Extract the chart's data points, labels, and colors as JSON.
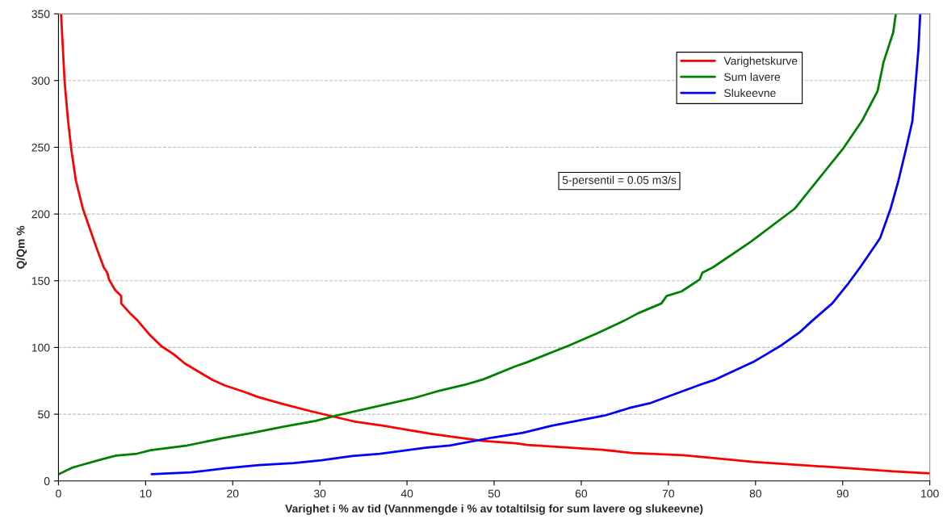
{
  "chart_data": {
    "type": "line",
    "xlabel": "Varighet i % av tid (Vannmengde i % av totaltilsig for sum lavere og slukeevne)",
    "ylabel": "Q/Qm %",
    "xlim": [
      0,
      100
    ],
    "ylim": [
      0,
      350
    ],
    "xticks": [
      0,
      10,
      20,
      30,
      40,
      50,
      60,
      70,
      80,
      90,
      100
    ],
    "yticks": [
      0,
      50,
      100,
      150,
      200,
      250,
      300,
      350
    ],
    "grid": "y",
    "legend": "top right",
    "marker": "none",
    "line_style": "solid",
    "annotations": [
      "5-persentil = 0.05 m3/s"
    ],
    "series": [
      {
        "name": "Varighetskurve",
        "color": "#ff0000",
        "x": [
          0.3,
          0.4,
          0.7,
          0.8,
          1.1,
          1.5,
          2.0,
          2.8,
          4.4,
          5.2,
          5.6,
          5.8,
          6.5,
          7.2,
          7.2,
          8.3,
          9.1,
          10.4,
          11.8,
          13.2,
          14.5,
          17.7,
          19.1,
          21.2,
          23,
          25.9,
          29.1,
          33.9,
          37.3,
          42.6,
          45.1,
          48.7,
          52.5,
          53.8,
          62.4,
          65.8,
          71.7,
          75.4,
          79.7,
          89.6,
          95.8,
          100
        ],
        "values": [
          350,
          337,
          300,
          292,
          270,
          247,
          225,
          204,
          174,
          160,
          156,
          151,
          143,
          138.5,
          133,
          125,
          120,
          110,
          101,
          95,
          88,
          75.6,
          71.5,
          67,
          62.7,
          57.4,
          52,
          44.6,
          41.3,
          35.5,
          33.2,
          30,
          28.2,
          27,
          23.4,
          21,
          19.3,
          17,
          14.3,
          10,
          7.2,
          5.6
        ]
      },
      {
        "name": "Sum lavere",
        "color": "#008000",
        "x": [
          0,
          1.5,
          2.4,
          5,
          6.6,
          9,
          10.6,
          14.8,
          18.8,
          22.3,
          25.9,
          29.5,
          32.3,
          40.9,
          43.4,
          46.6,
          48.7,
          52.5,
          53.8,
          58.7,
          61.8,
          64.9,
          66.5,
          69.2,
          69.8,
          71.5,
          73.6,
          73.9,
          75.1,
          79.4,
          84.5,
          90.1,
          92.2,
          94,
          94.7,
          95.8,
          96.1
        ],
        "values": [
          5,
          9.7,
          11.5,
          16.3,
          19,
          20.4,
          23,
          26.6,
          32,
          36,
          40.8,
          45,
          49.6,
          62.3,
          67,
          72,
          76,
          86,
          89,
          101.8,
          110.5,
          120,
          125.6,
          133,
          138.6,
          142,
          151,
          156,
          160,
          179,
          204,
          249.5,
          269.6,
          292,
          314,
          336,
          350
        ]
      },
      {
        "name": "Slukeevne",
        "color": "#0000ff",
        "x": [
          10.7,
          15.2,
          19.1,
          23,
          27,
          30.2,
          33.7,
          36.9,
          42.3,
          44.9,
          49.8,
          53.3,
          56.6,
          62.7,
          65.5,
          68,
          73.6,
          75.4,
          79.7,
          81,
          83,
          85,
          86.5,
          88.8,
          90.5,
          92,
          94,
          94.3,
          95.5,
          96.4,
          97.3,
          98,
          98.4,
          98.7,
          98.9
        ],
        "values": [
          5,
          6.4,
          9.4,
          11.8,
          13.4,
          15.5,
          18.7,
          20.4,
          25,
          26.6,
          32.5,
          36,
          41.3,
          49,
          54.6,
          58.5,
          72,
          76,
          89,
          94,
          101.8,
          111,
          120,
          133,
          146.7,
          160,
          179,
          182,
          204,
          225,
          249.5,
          269.6,
          300,
          324,
          350
        ]
      }
    ]
  }
}
